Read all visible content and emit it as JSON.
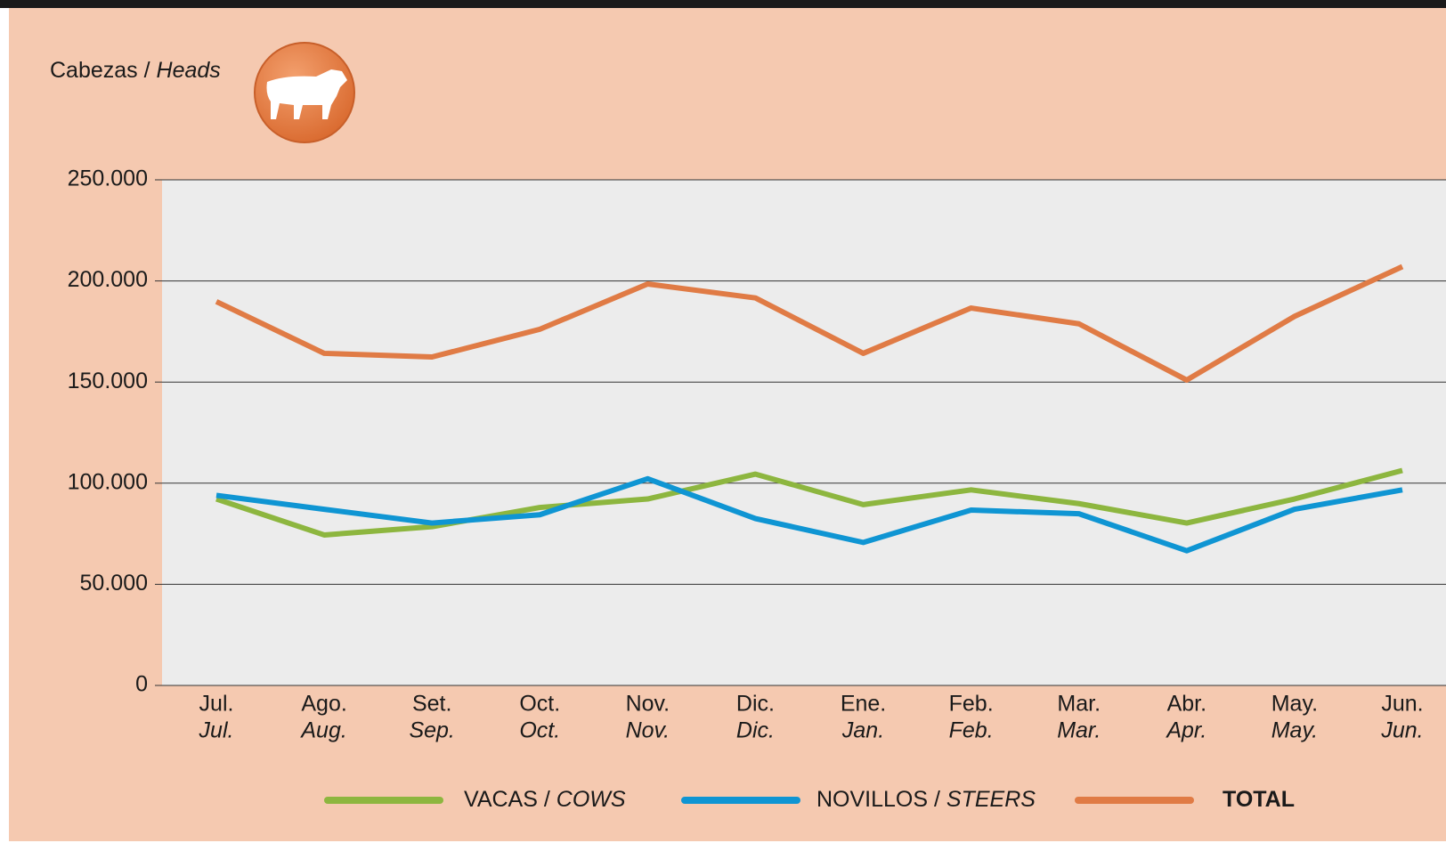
{
  "chart_data": {
    "type": "line",
    "y_label": "Cabezas",
    "y_label_en": "Heads",
    "separator": "/",
    "categories": [
      "Jul.",
      "Ago.",
      "Set.",
      "Oct.",
      "Nov.",
      "Dic.",
      "Ene.",
      "Feb.",
      "Mar.",
      "Abr.",
      "May.",
      "Jun."
    ],
    "categories_en": [
      "Jul.",
      "Aug.",
      "Sep.",
      "Oct.",
      "Nov.",
      "Dic.",
      "Jan.",
      "Feb.",
      "Mar.",
      "Apr.",
      "May.",
      "Jun."
    ],
    "ylim": [
      0,
      250000
    ],
    "yticks": [
      0,
      {
        "value": 50000,
        "label": "50.000"
      },
      {
        "value": 100000,
        "label": "100.000"
      },
      {
        "value": 150000,
        "label": "150.000"
      },
      {
        "value": 200000,
        "label": "200.000"
      },
      {
        "value": 250000,
        "label": "250.000"
      }
    ],
    "grid": true,
    "series": [
      {
        "name": "VACAS",
        "name_en": "COWS",
        "color": "#8db63f",
        "values": [
          92200,
          74400,
          78500,
          88000,
          92200,
          104500,
          89400,
          96700,
          89900,
          80300,
          92200,
          106300
        ]
      },
      {
        "name": "NOVILLOS",
        "name_en": "STEERS",
        "color": "#0f95d3",
        "values": [
          94000,
          87100,
          80300,
          84400,
          102200,
          82500,
          70700,
          86700,
          84900,
          66600,
          87100,
          96700
        ]
      },
      {
        "name": "TOTAL",
        "color": "#e07b45",
        "values": [
          189800,
          164200,
          162400,
          176100,
          198500,
          191600,
          164200,
          186600,
          178800,
          151000,
          182500,
          207100
        ]
      }
    ]
  }
}
